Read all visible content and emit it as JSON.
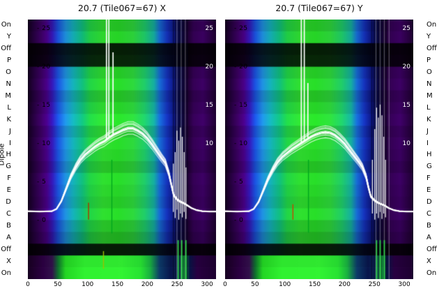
{
  "figure": {
    "background": "#ffffff",
    "dipole_axis_label": "Dipole"
  },
  "chart_data": {
    "type": "heatmap",
    "subtype": "dipole-waterfall-with-power-line-overlay",
    "xlabel": "",
    "ylabel": "Dipole",
    "x_range": [
      0,
      315
    ],
    "x_ticks": [
      0,
      50,
      100,
      150,
      200,
      250,
      300
    ],
    "power_ticks": [
      25,
      20,
      15,
      10,
      5,
      0
    ],
    "inner_tick_labels": [
      "- 25",
      "- 20",
      "- 15",
      "- 10",
      "- 5",
      "- 0"
    ],
    "right_tick_labels": [
      "25",
      "20",
      "15",
      "10"
    ],
    "row_labels": [
      "On",
      "Y",
      "Off",
      "P",
      "O",
      "N",
      "M",
      "L",
      "K",
      "J",
      "I",
      "H",
      "G",
      "F",
      "E",
      "D",
      "C",
      "B",
      "A",
      "Off",
      "X",
      "On"
    ],
    "row_styles": [
      {
        "b": 0.9
      },
      {
        "b": 1.0
      },
      {
        "b": 0.14
      },
      {
        "b": 0.18
      },
      {
        "b": 0.95
      },
      {
        "b": 1.05
      },
      {
        "b": 0.9
      },
      {
        "b": 1.0
      },
      {
        "b": 1.1
      },
      {
        "b": 0.95
      },
      {
        "b": 1.05
      },
      {
        "b": 1.0
      },
      {
        "b": 0.9
      },
      {
        "b": 1.05
      },
      {
        "b": 1.0
      },
      {
        "b": 0.95
      },
      {
        "b": 1.05
      },
      {
        "b": 0.9
      },
      {
        "b": 0.8
      },
      {
        "b": 0.13
      },
      {
        "b": 1.0,
        "green": true
      },
      {
        "b": 1.05,
        "green": true
      }
    ],
    "base_stops": [
      [
        0.0,
        "#12001c"
      ],
      [
        0.03,
        "#24003c"
      ],
      [
        0.07,
        "#3a0060"
      ],
      [
        0.1,
        "#460082"
      ],
      [
        0.13,
        "#3218b4"
      ],
      [
        0.16,
        "#1a50d8"
      ],
      [
        0.2,
        "#1e8cd8"
      ],
      [
        0.24,
        "#14aab4"
      ],
      [
        0.29,
        "#10b878"
      ],
      [
        0.33,
        "#20cc44"
      ],
      [
        0.4,
        "#2ed62e"
      ],
      [
        0.48,
        "#26d426"
      ],
      [
        0.56,
        "#2cd03a"
      ],
      [
        0.62,
        "#1ec464"
      ],
      [
        0.67,
        "#14a898"
      ],
      [
        0.7,
        "#1668cc"
      ],
      [
        0.74,
        "#1430b4"
      ],
      [
        0.78,
        "#0c1478"
      ],
      [
        0.81,
        "#0a0a46"
      ],
      [
        0.85,
        "#1e0032"
      ],
      [
        0.88,
        "#320052"
      ],
      [
        0.93,
        "#3a0060"
      ],
      [
        0.97,
        "#2a0044"
      ],
      [
        1.0,
        "#1c002e"
      ]
    ],
    "green_stops": [
      [
        0.0,
        "#16001f"
      ],
      [
        0.08,
        "#2a0040"
      ],
      [
        0.13,
        "#301048"
      ],
      [
        0.16,
        "#0e6a2c"
      ],
      [
        0.2,
        "#22cc22"
      ],
      [
        0.3,
        "#2ee62e"
      ],
      [
        0.5,
        "#30e830"
      ],
      [
        0.6,
        "#26d830"
      ],
      [
        0.65,
        "#18a83e"
      ],
      [
        0.7,
        "#0c3864"
      ],
      [
        0.76,
        "#081448"
      ],
      [
        0.8,
        "#0c2452"
      ],
      [
        0.83,
        "#16a83a"
      ],
      [
        0.86,
        "#081242"
      ],
      [
        0.9,
        "#26003e"
      ],
      [
        1.0,
        "#1c002e"
      ]
    ],
    "panels": [
      {
        "title": "20.7 (Tile067=67) X",
        "curve": [
          [
            0,
            1.3
          ],
          [
            20,
            1.25
          ],
          [
            40,
            1.3
          ],
          [
            48,
            1.6
          ],
          [
            56,
            2.6
          ],
          [
            64,
            4.2
          ],
          [
            72,
            5.8
          ],
          [
            80,
            7.0
          ],
          [
            88,
            8.0
          ],
          [
            96,
            8.7
          ],
          [
            104,
            9.2
          ],
          [
            112,
            9.7
          ],
          [
            120,
            10.1
          ],
          [
            128,
            10.4
          ],
          [
            136,
            10.9
          ],
          [
            144,
            11.3
          ],
          [
            152,
            11.6
          ],
          [
            160,
            11.9
          ],
          [
            168,
            12.1
          ],
          [
            176,
            12.1
          ],
          [
            184,
            11.8
          ],
          [
            192,
            11.4
          ],
          [
            200,
            10.8
          ],
          [
            208,
            10.0
          ],
          [
            216,
            9.1
          ],
          [
            224,
            8.2
          ],
          [
            230,
            7.6
          ],
          [
            236,
            6.2
          ],
          [
            240,
            4.8
          ],
          [
            244,
            3.4
          ],
          [
            250,
            2.8
          ],
          [
            256,
            2.5
          ],
          [
            262,
            2.3
          ],
          [
            268,
            2.0
          ],
          [
            274,
            1.7
          ],
          [
            282,
            1.45
          ],
          [
            292,
            1.3
          ],
          [
            304,
            1.25
          ],
          [
            315,
            1.25
          ]
        ],
        "line_scales": [
          1.0,
          1.045,
          0.965,
          1.08,
          0.93,
          1.015,
          0.985,
          1.06
        ],
        "spikes": [
          [
            131,
            27
          ],
          [
            135,
            27
          ],
          [
            142,
            22
          ]
        ],
        "burst_lines": [
          [
            243,
            1.2,
            7.5
          ],
          [
            246,
            0.4,
            9.0
          ],
          [
            249,
            1.5,
            11.8
          ],
          [
            252,
            0.2,
            10.5
          ],
          [
            255,
            1.0,
            12.2
          ],
          [
            258,
            0.5,
            11.0
          ],
          [
            261,
            1.2,
            9.0
          ],
          [
            264,
            0.3,
            7.0
          ]
        ],
        "color_marks": [
          [
            101,
            0.2,
            2.4,
            "#b03000"
          ],
          [
            140,
            -1.6,
            8.0,
            "#00a81e"
          ],
          [
            126,
            -6.2,
            -3.9,
            "#9fbf00"
          ]
        ],
        "gray_streaks": [
          249,
          256,
          263
        ],
        "dark_streaks": [
          243,
          247,
          251,
          254,
          259,
          262,
          266
        ],
        "green_streaks": [
          251,
          257,
          264
        ]
      },
      {
        "title": "20.7 (Tile067=67) Y",
        "curve": [
          [
            0,
            1.3
          ],
          [
            20,
            1.25
          ],
          [
            40,
            1.3
          ],
          [
            48,
            1.6
          ],
          [
            56,
            2.5
          ],
          [
            64,
            4.0
          ],
          [
            72,
            5.5
          ],
          [
            80,
            6.7
          ],
          [
            88,
            7.7
          ],
          [
            96,
            8.4
          ],
          [
            104,
            8.9
          ],
          [
            112,
            9.4
          ],
          [
            120,
            9.8
          ],
          [
            128,
            10.2
          ],
          [
            136,
            10.6
          ],
          [
            144,
            11.0
          ],
          [
            152,
            11.3
          ],
          [
            160,
            11.5
          ],
          [
            168,
            11.6
          ],
          [
            176,
            11.5
          ],
          [
            184,
            11.2
          ],
          [
            192,
            10.7
          ],
          [
            200,
            10.1
          ],
          [
            208,
            9.3
          ],
          [
            216,
            8.5
          ],
          [
            224,
            7.7
          ],
          [
            230,
            7.0
          ],
          [
            236,
            5.8
          ],
          [
            240,
            4.4
          ],
          [
            244,
            3.2
          ],
          [
            250,
            2.7
          ],
          [
            256,
            2.4
          ],
          [
            262,
            2.2
          ],
          [
            268,
            2.0
          ],
          [
            274,
            1.7
          ],
          [
            282,
            1.45
          ],
          [
            292,
            1.3
          ],
          [
            304,
            1.25
          ],
          [
            315,
            1.25
          ]
        ],
        "line_scales": [
          1.0,
          1.045,
          0.965,
          1.08,
          0.93,
          1.015,
          0.985,
          1.06
        ],
        "spikes": [
          [
            127,
            27
          ],
          [
            132,
            27
          ],
          [
            138,
            18
          ]
        ],
        "burst_lines": [
          [
            246,
            1.0,
            8.0
          ],
          [
            250,
            0.2,
            12.0
          ],
          [
            253,
            1.0,
            14.8
          ],
          [
            256,
            0.4,
            13.5
          ],
          [
            259,
            1.2,
            15.2
          ],
          [
            262,
            0.3,
            13.8
          ],
          [
            265,
            1.0,
            11.0
          ],
          [
            268,
            0.5,
            8.0
          ]
        ],
        "color_marks": [
          [
            113,
            0.2,
            2.2,
            "#c84400"
          ],
          [
            139,
            -1.5,
            8.0,
            "#00a81e"
          ]
        ],
        "gray_streaks": [
          252,
          259,
          266,
          274
        ],
        "dark_streaks": [
          245,
          249,
          253,
          257,
          261,
          265,
          269
        ],
        "green_streaks": [
          253,
          259,
          266
        ]
      }
    ]
  }
}
